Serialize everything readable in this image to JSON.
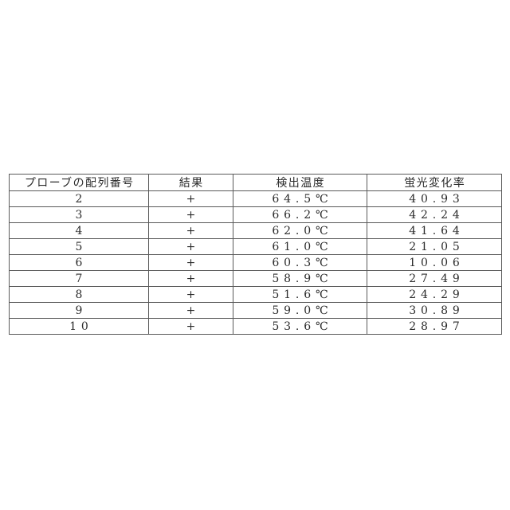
{
  "page": {
    "background_color": "#ffffff",
    "text_color": "#2b2b2b",
    "table_border_color": "#5a5a5a"
  },
  "table": {
    "columns": [
      "プローブの配列番号",
      "結果",
      "検出温度",
      "蛍光変化率"
    ],
    "rows": [
      [
        "2",
        "+",
        "64.5℃",
        "40.93"
      ],
      [
        "3",
        "+",
        "66.2℃",
        "42.24"
      ],
      [
        "4",
        "+",
        "62.0℃",
        "41.64"
      ],
      [
        "5",
        "+",
        "61.0℃",
        "21.05"
      ],
      [
        "6",
        "+",
        "60.3℃",
        "10.06"
      ],
      [
        "7",
        "+",
        "58.9℃",
        "27.49"
      ],
      [
        "8",
        "+",
        "51.6℃",
        "24.29"
      ],
      [
        "9",
        "+",
        "59.0℃",
        "30.89"
      ],
      [
        "10",
        "+",
        "53.6℃",
        "28.97"
      ]
    ]
  }
}
